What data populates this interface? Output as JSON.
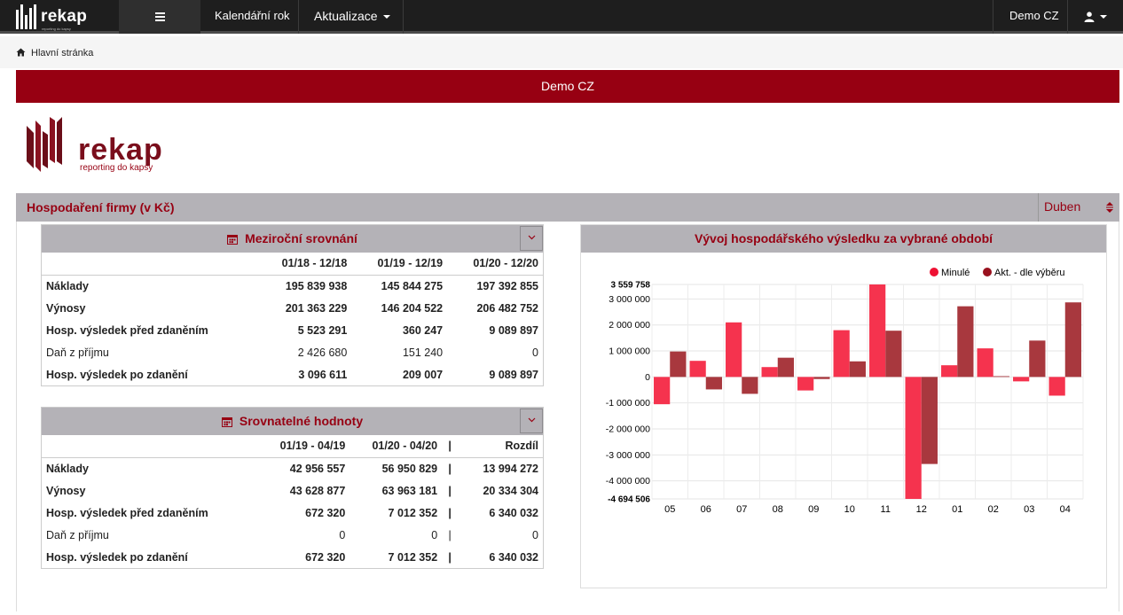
{
  "topbar": {
    "brand_name": "rekap",
    "brand_sub": "reporting do kapsy",
    "menu_calendar": "Kalendářní rok",
    "menu_update": "Aktualizace",
    "company": "Demo CZ"
  },
  "breadcrumb": {
    "home_label": "Hlavní stránka"
  },
  "banner": {
    "title": "Demo CZ"
  },
  "logo": {
    "name": "rekap",
    "tagline": "reporting do kapsy"
  },
  "section": {
    "title": "Hospodaření firmy (v Kč)",
    "period": "Duben"
  },
  "yoy": {
    "title": "Meziroční srovnání",
    "columns": [
      "01/18 - 12/18",
      "01/19 - 12/19",
      "01/20 - 12/20"
    ],
    "rows": [
      {
        "label": "Náklady",
        "values": [
          "195 839 938",
          "145 844 275",
          "197 392 855"
        ]
      },
      {
        "label": "Výnosy",
        "values": [
          "201 363 229",
          "146 204 522",
          "206 482 752"
        ]
      },
      {
        "label": "Hosp. výsledek před zdaněním",
        "values": [
          "5 523 291",
          "360 247",
          "9 089 897"
        ]
      },
      {
        "label": "Daň z příjmu",
        "values": [
          "2 426 680",
          "151 240",
          "0"
        ]
      },
      {
        "label": "Hosp. výsledek po zdanění",
        "values": [
          "3 096 611",
          "209 007",
          "9 089 897"
        ]
      }
    ]
  },
  "comparable": {
    "title": "Srovnatelné hodnoty",
    "columns": [
      "01/19 - 04/19",
      "01/20 - 04/20",
      "|",
      "Rozdíl"
    ],
    "pipe": "|",
    "rows": [
      {
        "label": "Náklady",
        "values": [
          "42 956 557",
          "56 950 829",
          "13 994 272"
        ]
      },
      {
        "label": "Výnosy",
        "values": [
          "43 628 877",
          "63 963 181",
          "20 334 304"
        ]
      },
      {
        "label": "Hosp. výsledek před zdaněním",
        "values": [
          "672 320",
          "7 012 352",
          "6 340 032"
        ]
      },
      {
        "label": "Daň z příjmu",
        "values": [
          "0",
          "0",
          "0"
        ]
      },
      {
        "label": "Hosp. výsledek po zdanění",
        "values": [
          "672 320",
          "7 012 352",
          "6 340 032"
        ]
      }
    ]
  },
  "chart_panel": {
    "title": "Vývoj hospodářského výsledku za vybrané období"
  },
  "chart_data": {
    "type": "bar",
    "categories": [
      "05",
      "06",
      "07",
      "08",
      "09",
      "10",
      "11",
      "12",
      "01",
      "02",
      "03",
      "04"
    ],
    "series": [
      {
        "name": "Minulé",
        "color": "#f5334e",
        "values": [
          -1050000,
          620000,
          2100000,
          380000,
          -520000,
          1800000,
          3559758,
          -4694506,
          450000,
          1100000,
          -170000,
          -720000
        ]
      },
      {
        "name": "Akt. - dle výběru",
        "color": "#a8383e",
        "values": [
          980000,
          -480000,
          -650000,
          740000,
          -80000,
          600000,
          1780000,
          -3350000,
          2720000,
          30000,
          1400000,
          2870000
        ]
      }
    ],
    "ylim": [
      -4694506,
      3559758
    ],
    "yticks": [
      3559758,
      3000000,
      2000000,
      1000000,
      0,
      -1000000,
      -2000000,
      -3000000,
      -4000000,
      -4694506
    ],
    "ytick_labels": [
      "3 559 758",
      "3 000 000",
      "2 000 000",
      "1 000 000",
      "0",
      "-1 000 000",
      "-2 000 000",
      "-3 000 000",
      "-4 000 000",
      "-4 694 506"
    ],
    "legend_position": "top-right",
    "grid": true
  }
}
